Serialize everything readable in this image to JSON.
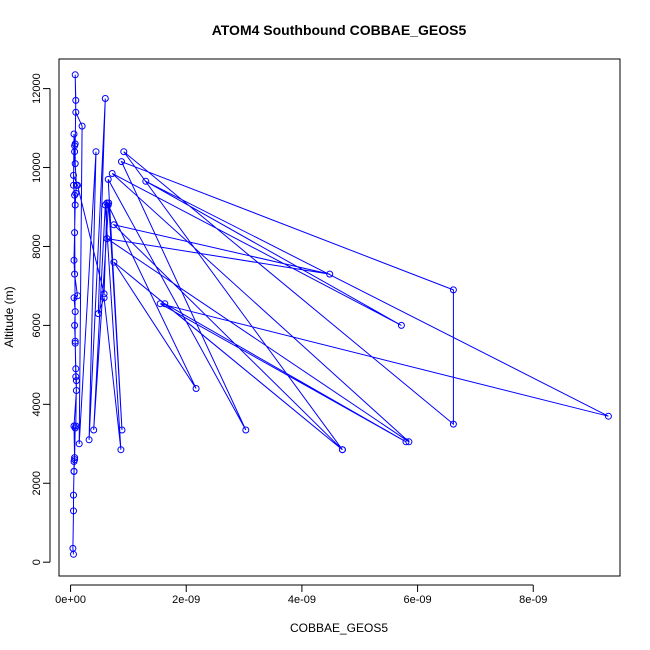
{
  "chart_data": {
    "type": "line",
    "title": "ATOM4 Southbound COBBAE_GEOS5",
    "xlabel": "COBBAE_GEOS5",
    "ylabel": "Altitude (m)",
    "x_ticks": [
      0,
      2e-09,
      4e-09,
      6e-09,
      8e-09
    ],
    "x_tick_labels": [
      "0e+00",
      "2e-09",
      "4e-09",
      "6e-09",
      "8e-09"
    ],
    "y_ticks": [
      0,
      2000,
      4000,
      6000,
      8000,
      10000,
      12000
    ],
    "y_tick_labels": [
      "0",
      "2000",
      "4000",
      "6000",
      "8000",
      "10000",
      "12000"
    ],
    "xlim": [
      -2e-10,
      9.5e-09
    ],
    "ylim": [
      -350,
      12750
    ],
    "grid": false,
    "series_color": "#0000ff",
    "series": [
      {
        "points": [
          [
            5e-11,
            200
          ],
          [
            4e-11,
            350
          ],
          [
            5e-11,
            1300
          ],
          [
            5e-11,
            1700
          ],
          [
            6e-11,
            2300
          ],
          [
            6e-11,
            2550
          ],
          [
            7e-11,
            2650
          ],
          [
            8e-11,
            3400
          ],
          [
            9e-11,
            3450
          ],
          [
            1e-10,
            4600
          ],
          [
            9e-11,
            4900
          ],
          [
            8e-11,
            5600
          ],
          [
            7e-11,
            6000
          ],
          [
            8e-11,
            6350
          ],
          [
            6e-11,
            6700
          ],
          [
            1.2e-10,
            6750
          ],
          [
            7e-11,
            7300
          ],
          [
            6e-11,
            7650
          ],
          [
            7e-11,
            8350
          ],
          [
            8e-11,
            9050
          ],
          [
            9e-11,
            9350
          ],
          [
            1e-10,
            9550
          ],
          [
            8e-11,
            10100
          ],
          [
            8e-11,
            10600
          ],
          [
            9e-11,
            11700
          ],
          [
            8e-11,
            12350
          ],
          [
            9e-11,
            11400
          ],
          [
            2e-10,
            11050
          ],
          [
            1.5e-10,
            3000
          ],
          [
            4.4e-10,
            10400
          ],
          [
            3.2e-10,
            3100
          ],
          [
            6e-10,
            11750
          ],
          [
            4.8e-10,
            6300
          ],
          [
            5.8e-10,
            6700
          ],
          [
            8.7e-10,
            2850
          ],
          [
            6e-10,
            9050
          ],
          [
            4e-10,
            3350
          ],
          [
            6.6e-10,
            9100
          ],
          [
            8.9e-10,
            3350
          ],
          [
            6.5e-10,
            9700
          ],
          [
            3.03e-09,
            3350
          ],
          [
            8.8e-10,
            10150
          ],
          [
            6.62e-09,
            6900
          ],
          [
            6.62e-09,
            3500
          ],
          [
            9.2e-10,
            10400
          ],
          [
            4.7e-09,
            2850
          ],
          [
            7.5e-10,
            8550
          ],
          [
            4.48e-09,
            7300
          ],
          [
            6.3e-10,
            8200
          ],
          [
            5.85e-09,
            3050
          ],
          [
            7.2e-10,
            9850
          ],
          [
            5.72e-09,
            6000
          ],
          [
            1.3e-09,
            9650
          ],
          [
            9.3e-09,
            3700
          ],
          [
            1.55e-09,
            6550
          ],
          [
            5.8e-09,
            3050
          ],
          [
            1.63e-09,
            6550
          ],
          [
            4.7e-09,
            2850
          ],
          [
            7.5e-10,
            7600
          ],
          [
            2.17e-09,
            4400
          ],
          [
            6.5e-10,
            9050
          ],
          [
            6.3e-10,
            9100
          ],
          [
            5.8e-10,
            6800
          ],
          [
            1.2e-10,
            9550
          ],
          [
            5e-11,
            9800
          ],
          [
            7e-11,
            10400
          ],
          [
            7e-11,
            10550
          ],
          [
            6e-11,
            10850
          ],
          [
            5e-11,
            9550
          ],
          [
            7e-11,
            9300
          ],
          [
            8e-11,
            5550
          ],
          [
            9e-11,
            4700
          ],
          [
            1e-10,
            4350
          ],
          [
            6e-11,
            3450
          ],
          [
            7e-11,
            2600
          ],
          [
            6e-11,
            2300
          ]
        ]
      }
    ]
  }
}
